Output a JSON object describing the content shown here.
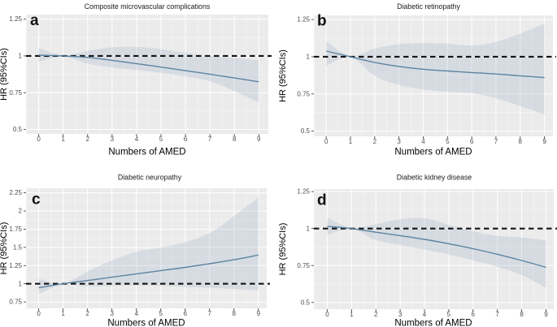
{
  "figure": {
    "kind": "2x2 faceted hazard-ratio spline plots",
    "background": "#ffffff"
  },
  "style": {
    "panel_bg": "#ebebeb",
    "grid_major": "#ffffff",
    "grid_minor": "#ffffff",
    "hr_line": "#5b84a2",
    "ci_fill": "#829bb9",
    "ci_opacity": 0.2,
    "reference_line": "#141414",
    "tick_mark": "#333333",
    "tick_label": "#4d4d4d",
    "title_color": "#1a1a1a"
  },
  "chart_data": [
    {
      "type": "line",
      "panel_letter": "a",
      "title": "Composite microvascular complications",
      "xlabel": "Numbers of AMED",
      "ylabel": "HR (95%CIs)",
      "x": [
        0,
        1,
        2,
        3,
        4,
        5,
        6,
        7,
        8,
        9
      ],
      "series": [
        {
          "name": "HR",
          "values": [
            1.005,
            1.0,
            0.99,
            0.97,
            0.948,
            0.924,
            0.9,
            0.876,
            0.85,
            0.824
          ]
        },
        {
          "name": "CI_upper",
          "values": [
            1.054,
            1.004,
            1.035,
            1.058,
            1.062,
            1.046,
            1.02,
            1.0,
            0.985,
            0.972
          ]
        },
        {
          "name": "CI_lower",
          "values": [
            0.961,
            0.996,
            0.948,
            0.922,
            0.905,
            0.885,
            0.86,
            0.828,
            0.762,
            0.682
          ]
        }
      ],
      "reference_line_y": 1,
      "xticks": [
        "0",
        "1",
        "2",
        "3",
        "4",
        "5",
        "6",
        "7",
        "8",
        "9"
      ],
      "ytick_values": [
        0.5,
        0.75,
        1,
        1.25
      ],
      "ytick_labels": [
        "0.5",
        "0.75",
        "1",
        "1.25"
      ],
      "xlim": [
        -0.52,
        9.39
      ],
      "ylim": [
        0.47,
        1.281
      ],
      "grid": true,
      "legend": "none"
    },
    {
      "type": "line",
      "panel_letter": "b",
      "title": "Diabetic retinopathy",
      "xlabel": "Numbers of AMED",
      "ylabel": "HR (95%CIs)",
      "x": [
        0,
        1,
        2,
        3,
        4,
        5,
        6,
        7,
        8,
        9
      ],
      "series": [
        {
          "name": "HR",
          "values": [
            1.038,
            1.0,
            0.962,
            0.935,
            0.916,
            0.904,
            0.894,
            0.884,
            0.872,
            0.86
          ]
        },
        {
          "name": "CI_upper",
          "values": [
            1.103,
            1.004,
            1.055,
            1.085,
            1.092,
            1.088,
            1.075,
            1.1,
            1.155,
            1.222
          ]
        },
        {
          "name": "CI_lower",
          "values": [
            0.94,
            0.996,
            0.872,
            0.81,
            0.78,
            0.765,
            0.755,
            0.72,
            0.668,
            0.612
          ]
        }
      ],
      "reference_line_y": 1,
      "xticks": [
        "0",
        "1",
        "2",
        "3",
        "4",
        "5",
        "6",
        "7",
        "8",
        "9"
      ],
      "ytick_values": [
        0.5,
        0.75,
        1,
        1.25
      ],
      "ytick_labels": [
        "0.5",
        "0.75",
        "1",
        "1.25"
      ],
      "xlim": [
        -0.51,
        9.35
      ],
      "ylim": [
        0.465,
        1.278
      ],
      "grid": true,
      "legend": "none"
    },
    {
      "type": "line",
      "panel_letter": "c",
      "title": "Diabetic neuropathy",
      "xlabel": "Numbers of AMED",
      "ylabel": "HR (95%CIs)",
      "x": [
        0,
        1,
        2,
        3,
        4,
        5,
        6,
        7,
        8,
        9
      ],
      "series": [
        {
          "name": "HR",
          "values": [
            0.945,
            1.0,
            1.045,
            1.09,
            1.135,
            1.18,
            1.225,
            1.275,
            1.33,
            1.395
          ]
        },
        {
          "name": "CI_upper",
          "values": [
            1.068,
            1.004,
            1.17,
            1.32,
            1.44,
            1.5,
            1.57,
            1.7,
            1.93,
            2.19
          ]
        },
        {
          "name": "CI_lower",
          "values": [
            0.858,
            0.996,
            0.963,
            0.972,
            0.978,
            0.973,
            0.958,
            0.945,
            0.928,
            0.91
          ]
        }
      ],
      "reference_line_y": 1,
      "xticks": [
        "0",
        "1",
        "2",
        "3",
        "4",
        "5",
        "6",
        "7",
        "8",
        "9"
      ],
      "ytick_values": [
        0.75,
        1,
        1.25,
        1.5,
        1.75,
        2,
        2.25
      ],
      "ytick_labels": [
        "0.75",
        "1",
        "1.25",
        "1.5",
        "1.75",
        "2",
        "2.25"
      ],
      "xlim": [
        -0.52,
        9.34
      ],
      "ylim": [
        0.662,
        2.313
      ],
      "grid": true,
      "legend": "none"
    },
    {
      "type": "line",
      "panel_letter": "d",
      "title": "Diabetic kidney disease",
      "xlabel": "Numbers of AMED",
      "ylabel": "HR (95%CIs)",
      "x": [
        0,
        1,
        2,
        3,
        4,
        5,
        6,
        7,
        8,
        9
      ],
      "series": [
        {
          "name": "HR",
          "values": [
            1.015,
            1.0,
            0.975,
            0.952,
            0.927,
            0.897,
            0.864,
            0.826,
            0.784,
            0.738
          ]
        },
        {
          "name": "CI_upper",
          "values": [
            1.073,
            1.004,
            1.03,
            1.062,
            1.07,
            1.025,
            0.982,
            0.95,
            0.94,
            0.92
          ]
        },
        {
          "name": "CI_lower",
          "values": [
            0.957,
            0.996,
            0.922,
            0.888,
            0.858,
            0.825,
            0.785,
            0.742,
            0.685,
            0.6
          ]
        }
      ],
      "reference_line_y": 1,
      "xticks": [
        "0",
        "1",
        "2",
        "3",
        "4",
        "5",
        "6",
        "7",
        "8",
        "9"
      ],
      "ytick_values": [
        0.5,
        0.75,
        1,
        1.25
      ],
      "ytick_labels": [
        "0.5",
        "0.75",
        "1",
        "1.25"
      ],
      "xlim": [
        -0.55,
        9.32
      ],
      "ylim": [
        0.455,
        1.267
      ],
      "grid": true,
      "legend": "none"
    }
  ]
}
